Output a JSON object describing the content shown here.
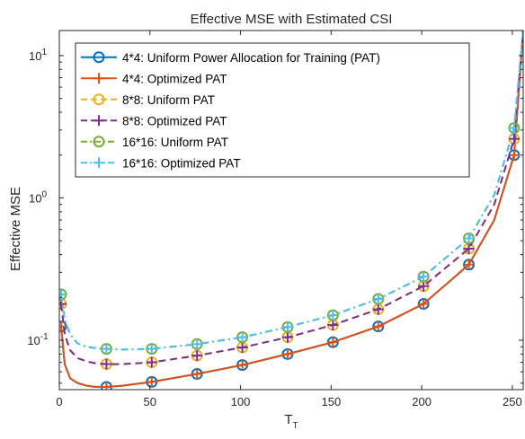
{
  "chart_data": {
    "type": "line",
    "title": "Effective MSE with Estimated CSI",
    "xlabel_main": "T",
    "xlabel_sub": "T",
    "ylabel": "Effective MSE",
    "xlim": [
      0,
      256
    ],
    "ylim": [
      0.045,
      15
    ],
    "yscale": "log",
    "grid": false,
    "legend_position": "top-left",
    "x_ticks": [
      "0",
      "50",
      "100",
      "150",
      "200",
      "250"
    ],
    "y_ticks": [
      {
        "base": "10",
        "exp": "-1",
        "value": 0.1
      },
      {
        "base": "10",
        "exp": "0",
        "value": 1
      },
      {
        "base": "10",
        "exp": "1",
        "value": 10
      }
    ],
    "marker_x": [
      1,
      26,
      51,
      76,
      101,
      126,
      151,
      176,
      201,
      226,
      251
    ],
    "series": [
      {
        "name": "4*4: Uniform Power Allocation for Training (PAT)",
        "color": "#0072BD",
        "dash": "solid",
        "marker": "circle",
        "x": [
          1,
          3,
          6,
          10,
          15,
          20,
          26,
          35,
          51,
          76,
          101,
          126,
          151,
          176,
          201,
          226,
          240,
          251,
          256
        ],
        "y": [
          0.125,
          0.068,
          0.054,
          0.05,
          0.048,
          0.047,
          0.047,
          0.048,
          0.051,
          0.058,
          0.067,
          0.08,
          0.097,
          0.125,
          0.18,
          0.34,
          0.7,
          2.0,
          15
        ]
      },
      {
        "name": "4*4: Optimized PAT",
        "color": "#D95319",
        "dash": "solid",
        "marker": "plus",
        "x": [
          1,
          3,
          6,
          10,
          15,
          20,
          26,
          35,
          51,
          76,
          101,
          126,
          151,
          176,
          201,
          226,
          240,
          251,
          256
        ],
        "y": [
          0.125,
          0.068,
          0.054,
          0.05,
          0.048,
          0.047,
          0.047,
          0.048,
          0.051,
          0.058,
          0.067,
          0.08,
          0.097,
          0.125,
          0.18,
          0.34,
          0.7,
          2.0,
          15
        ]
      },
      {
        "name": "8*8: Uniform PAT",
        "color": "#EDB120",
        "dash": "dash",
        "marker": "circle",
        "x": [
          1,
          3,
          6,
          10,
          15,
          20,
          26,
          35,
          51,
          76,
          101,
          126,
          151,
          176,
          201,
          226,
          240,
          251,
          256
        ],
        "y": [
          0.18,
          0.11,
          0.085,
          0.075,
          0.071,
          0.069,
          0.068,
          0.068,
          0.07,
          0.078,
          0.089,
          0.105,
          0.128,
          0.165,
          0.24,
          0.44,
          0.9,
          2.6,
          15
        ]
      },
      {
        "name": "8*8: Optimized PAT",
        "color": "#7E2F8E",
        "dash": "dash",
        "marker": "plus",
        "x": [
          1,
          3,
          6,
          10,
          15,
          20,
          26,
          35,
          51,
          76,
          101,
          126,
          151,
          176,
          201,
          226,
          240,
          251,
          256
        ],
        "y": [
          0.18,
          0.11,
          0.085,
          0.075,
          0.071,
          0.069,
          0.068,
          0.068,
          0.07,
          0.078,
          0.089,
          0.105,
          0.128,
          0.165,
          0.24,
          0.44,
          0.9,
          2.6,
          15
        ]
      },
      {
        "name": "16*16: Uniform PAT",
        "color": "#77AC30",
        "dash": "dashdot",
        "marker": "circle",
        "x": [
          1,
          3,
          6,
          10,
          15,
          20,
          26,
          35,
          51,
          76,
          101,
          126,
          151,
          176,
          201,
          226,
          240,
          251,
          256
        ],
        "y": [
          0.21,
          0.14,
          0.11,
          0.095,
          0.09,
          0.088,
          0.087,
          0.086,
          0.087,
          0.094,
          0.105,
          0.124,
          0.15,
          0.195,
          0.28,
          0.52,
          1.05,
          3.1,
          15
        ]
      },
      {
        "name": "16*16: Optimized PAT",
        "color": "#4DBEEE",
        "dash": "dashdot",
        "marker": "plus",
        "x": [
          1,
          3,
          6,
          10,
          15,
          20,
          26,
          35,
          51,
          76,
          101,
          126,
          151,
          176,
          201,
          226,
          240,
          251,
          256
        ],
        "y": [
          0.21,
          0.14,
          0.11,
          0.095,
          0.09,
          0.088,
          0.087,
          0.086,
          0.087,
          0.094,
          0.105,
          0.124,
          0.15,
          0.195,
          0.28,
          0.52,
          1.05,
          3.1,
          15
        ]
      }
    ]
  }
}
